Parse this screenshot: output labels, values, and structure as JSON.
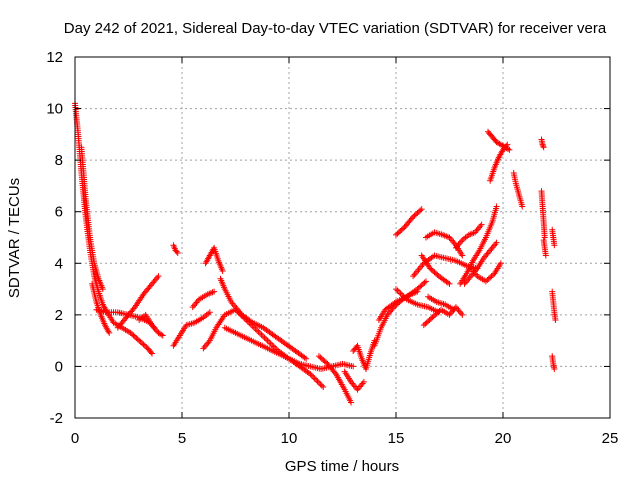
{
  "chart_data": {
    "type": "scatter",
    "title": "Day 242 of 2021, Sidereal Day-to-day VTEC variation (SDTVAR) for receiver vera",
    "xlabel": "GPS time / hours",
    "ylabel": "SDTVAR / TECUs",
    "xlim": [
      0,
      25
    ],
    "ylim": [
      -2,
      12
    ],
    "xticks": [
      0,
      5,
      10,
      15,
      20,
      25
    ],
    "yticks": [
      -2,
      0,
      2,
      4,
      6,
      8,
      10,
      12
    ],
    "grid": true,
    "marker": "+",
    "series_color": "#ff0000",
    "tracks": [
      [
        [
          0.0,
          10.2
        ],
        [
          0.15,
          9.0
        ],
        [
          0.3,
          7.5
        ],
        [
          0.5,
          5.8
        ],
        [
          0.7,
          4.5
        ],
        [
          0.9,
          3.5
        ],
        [
          1.1,
          2.9
        ],
        [
          1.3,
          2.4
        ],
        [
          1.5,
          2.1
        ],
        [
          1.8,
          1.7
        ],
        [
          2.2,
          1.5
        ],
        [
          2.6,
          1.3
        ],
        [
          3.0,
          1.0
        ],
        [
          3.4,
          0.7
        ],
        [
          3.6,
          0.5
        ]
      ],
      [
        [
          0.3,
          8.5
        ],
        [
          0.5,
          6.5
        ],
        [
          0.7,
          5.0
        ],
        [
          0.9,
          4.0
        ],
        [
          1.1,
          3.4
        ],
        [
          1.3,
          3.0
        ]
      ],
      [
        [
          0.8,
          3.2
        ],
        [
          1.0,
          2.5
        ],
        [
          1.2,
          2.0
        ],
        [
          1.4,
          1.6
        ],
        [
          1.6,
          1.3
        ]
      ],
      [
        [
          1.0,
          2.2
        ],
        [
          1.5,
          2.1
        ],
        [
          2.0,
          2.1
        ],
        [
          2.5,
          2.0
        ],
        [
          3.0,
          1.9
        ],
        [
          3.5,
          1.7
        ],
        [
          3.7,
          1.5
        ]
      ],
      [
        [
          2.0,
          1.5
        ],
        [
          2.4,
          1.9
        ],
        [
          2.8,
          2.3
        ],
        [
          3.2,
          2.8
        ],
        [
          3.6,
          3.2
        ],
        [
          3.9,
          3.5
        ]
      ],
      [
        [
          3.0,
          1.8
        ],
        [
          3.3,
          2.0
        ],
        [
          3.6,
          1.6
        ],
        [
          3.9,
          1.3
        ],
        [
          4.1,
          1.2
        ]
      ],
      [
        [
          4.6,
          4.7
        ],
        [
          4.7,
          4.5
        ],
        [
          4.8,
          4.4
        ]
      ],
      [
        [
          4.6,
          0.8
        ],
        [
          4.9,
          1.2
        ],
        [
          5.2,
          1.6
        ],
        [
          5.6,
          1.7
        ],
        [
          6.0,
          1.9
        ],
        [
          6.3,
          2.1
        ]
      ],
      [
        [
          5.5,
          2.3
        ],
        [
          5.8,
          2.6
        ],
        [
          6.2,
          2.8
        ],
        [
          6.5,
          2.9
        ]
      ],
      [
        [
          6.0,
          0.7
        ],
        [
          6.3,
          1.0
        ],
        [
          6.6,
          1.5
        ],
        [
          7.0,
          2.0
        ],
        [
          7.5,
          2.2
        ],
        [
          8.0,
          1.8
        ],
        [
          8.5,
          1.4
        ],
        [
          9.0,
          1.0
        ],
        [
          9.5,
          0.6
        ],
        [
          10.0,
          0.3
        ],
        [
          10.5,
          0.0
        ],
        [
          11.0,
          -0.3
        ],
        [
          11.6,
          -0.8
        ]
      ],
      [
        [
          6.1,
          4.0
        ],
        [
          6.3,
          4.3
        ],
        [
          6.5,
          4.6
        ],
        [
          6.7,
          4.1
        ],
        [
          6.9,
          3.7
        ]
      ],
      [
        [
          6.8,
          3.4
        ],
        [
          7.0,
          3.0
        ],
        [
          7.3,
          2.5
        ],
        [
          7.8,
          2.0
        ],
        [
          8.3,
          1.7
        ],
        [
          8.8,
          1.5
        ],
        [
          9.3,
          1.2
        ],
        [
          9.8,
          0.9
        ],
        [
          10.3,
          0.6
        ],
        [
          10.8,
          0.3
        ]
      ],
      [
        [
          7.0,
          1.5
        ],
        [
          7.5,
          1.3
        ],
        [
          8.0,
          1.1
        ],
        [
          8.5,
          0.9
        ],
        [
          9.0,
          0.7
        ],
        [
          9.5,
          0.5
        ],
        [
          10.0,
          0.3
        ],
        [
          10.5,
          0.1
        ],
        [
          11.0,
          0.0
        ],
        [
          11.5,
          -0.1
        ],
        [
          12.0,
          0.0
        ],
        [
          12.5,
          0.1
        ],
        [
          13.0,
          0.0
        ]
      ],
      [
        [
          11.4,
          0.4
        ],
        [
          11.8,
          0.1
        ],
        [
          12.2,
          -0.3
        ],
        [
          12.6,
          -0.9
        ],
        [
          12.9,
          -1.4
        ]
      ],
      [
        [
          12.6,
          -0.2
        ],
        [
          12.9,
          -0.6
        ],
        [
          13.2,
          -0.9
        ],
        [
          13.5,
          -0.6
        ]
      ],
      [
        [
          13.0,
          0.6
        ],
        [
          13.2,
          0.8
        ],
        [
          13.4,
          0.3
        ],
        [
          13.6,
          -0.1
        ],
        [
          13.8,
          0.5
        ],
        [
          14.0,
          1.0
        ]
      ],
      [
        [
          14.0,
          0.8
        ],
        [
          14.3,
          1.5
        ],
        [
          14.6,
          2.0
        ],
        [
          14.9,
          2.3
        ],
        [
          15.3,
          2.6
        ],
        [
          15.7,
          2.8
        ],
        [
          16.0,
          2.9
        ]
      ],
      [
        [
          14.2,
          1.8
        ],
        [
          14.5,
          2.2
        ],
        [
          15.0,
          2.5
        ],
        [
          15.5,
          2.7
        ],
        [
          16.0,
          3.0
        ],
        [
          16.4,
          3.3
        ]
      ],
      [
        [
          15.0,
          5.1
        ],
        [
          15.4,
          5.4
        ],
        [
          15.8,
          5.8
        ],
        [
          16.2,
          6.1
        ]
      ],
      [
        [
          15.0,
          3.0
        ],
        [
          15.5,
          2.6
        ],
        [
          16.0,
          2.4
        ],
        [
          16.5,
          2.3
        ],
        [
          17.0,
          2.1
        ]
      ],
      [
        [
          15.8,
          3.5
        ],
        [
          16.3,
          4.0
        ],
        [
          16.8,
          4.3
        ],
        [
          17.3,
          4.2
        ],
        [
          17.8,
          4.1
        ],
        [
          18.3,
          3.9
        ],
        [
          18.8,
          3.8
        ]
      ],
      [
        [
          16.4,
          5.0
        ],
        [
          16.8,
          5.2
        ],
        [
          17.2,
          5.1
        ],
        [
          17.5,
          5.0
        ],
        [
          17.8,
          4.7
        ],
        [
          18.1,
          4.3
        ]
      ],
      [
        [
          16.2,
          4.3
        ],
        [
          16.6,
          3.8
        ],
        [
          17.0,
          3.5
        ],
        [
          17.5,
          3.2
        ]
      ],
      [
        [
          16.3,
          1.6
        ],
        [
          16.7,
          1.9
        ],
        [
          17.1,
          2.2
        ],
        [
          17.5,
          2.0
        ],
        [
          17.8,
          2.3
        ],
        [
          18.1,
          2.0
        ]
      ],
      [
        [
          16.5,
          2.7
        ],
        [
          16.9,
          2.5
        ],
        [
          17.3,
          2.4
        ],
        [
          17.7,
          2.2
        ]
      ],
      [
        [
          17.8,
          4.6
        ],
        [
          18.1,
          4.9
        ],
        [
          18.4,
          5.1
        ],
        [
          18.7,
          5.2
        ],
        [
          19.0,
          5.5
        ]
      ],
      [
        [
          18.2,
          3.2
        ],
        [
          18.5,
          3.5
        ],
        [
          18.8,
          3.8
        ],
        [
          19.1,
          4.2
        ],
        [
          19.4,
          4.5
        ],
        [
          19.7,
          4.8
        ]
      ],
      [
        [
          18.0,
          3.2
        ],
        [
          18.3,
          3.6
        ],
        [
          18.6,
          4.1
        ],
        [
          18.9,
          4.5
        ],
        [
          19.2,
          5.0
        ],
        [
          19.5,
          5.6
        ],
        [
          19.7,
          6.2
        ]
      ],
      [
        [
          18.5,
          3.8
        ],
        [
          18.8,
          3.5
        ],
        [
          19.2,
          3.3
        ],
        [
          19.6,
          3.6
        ],
        [
          19.9,
          4.0
        ]
      ],
      [
        [
          19.3,
          9.1
        ],
        [
          19.5,
          8.9
        ],
        [
          19.7,
          8.7
        ],
        [
          19.9,
          8.6
        ],
        [
          20.1,
          8.5
        ],
        [
          20.3,
          8.4
        ]
      ],
      [
        [
          19.4,
          7.2
        ],
        [
          19.6,
          7.7
        ],
        [
          19.8,
          8.1
        ],
        [
          20.0,
          8.4
        ],
        [
          20.2,
          8.6
        ]
      ],
      [
        [
          20.5,
          7.5
        ],
        [
          20.6,
          7.1
        ],
        [
          20.7,
          6.8
        ],
        [
          20.8,
          6.5
        ],
        [
          20.9,
          6.2
        ]
      ],
      [
        [
          21.8,
          8.8
        ],
        [
          21.85,
          8.6
        ],
        [
          21.9,
          8.5
        ]
      ],
      [
        [
          21.8,
          6.8
        ],
        [
          21.85,
          6.2
        ],
        [
          21.9,
          5.6
        ],
        [
          21.95,
          5.0
        ]
      ],
      [
        [
          21.9,
          4.9
        ],
        [
          21.95,
          4.6
        ],
        [
          22.0,
          4.3
        ]
      ],
      [
        [
          22.3,
          5.3
        ],
        [
          22.35,
          5.0
        ],
        [
          22.4,
          4.7
        ]
      ],
      [
        [
          22.3,
          2.9
        ],
        [
          22.35,
          2.5
        ],
        [
          22.4,
          2.1
        ],
        [
          22.45,
          1.8
        ]
      ],
      [
        [
          22.3,
          0.4
        ],
        [
          22.35,
          0.1
        ],
        [
          22.4,
          -0.1
        ]
      ]
    ]
  }
}
